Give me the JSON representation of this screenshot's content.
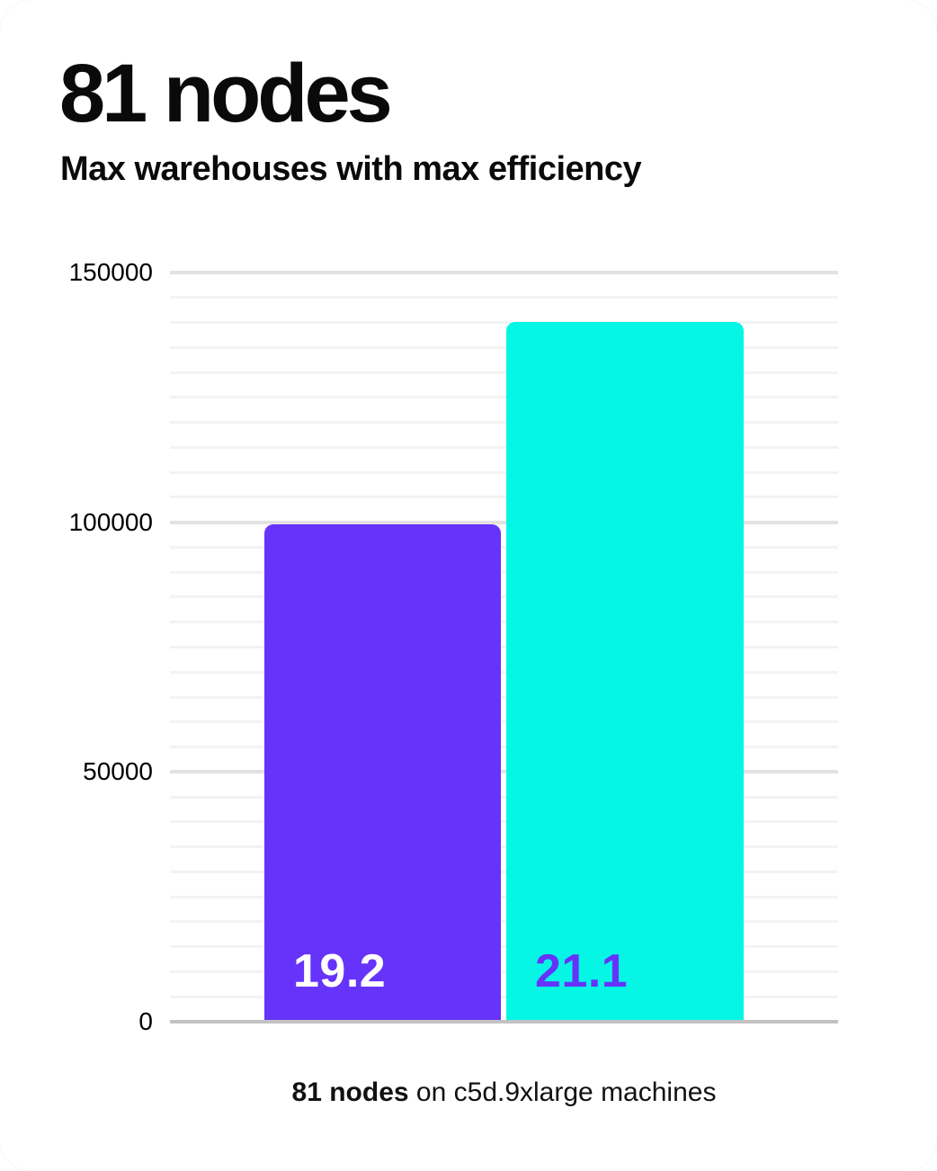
{
  "header": {
    "title": "81 nodes",
    "subtitle": "Max warehouses with max efficiency"
  },
  "caption": {
    "bold": "81 nodes",
    "rest": " on c5d.9xlarge machines"
  },
  "colors": {
    "purple": "#6633fa",
    "cyan": "#06f6e6",
    "text_black": "#0a0a0a",
    "grid_minor": "#f3f3f3",
    "grid_major": "#e2e2e2",
    "axis_baseline": "#c2c2c2",
    "card_background": "#ffffff"
  },
  "chart_data": {
    "type": "bar",
    "title": "81 nodes",
    "subtitle": "Max warehouses with max efficiency",
    "caption": "81 nodes on c5d.9xlarge machines",
    "categories": [
      "19.2",
      "21.1"
    ],
    "series": [
      {
        "name": "Max warehouses",
        "values": [
          99600,
          140100
        ]
      }
    ],
    "bar_labels": [
      "19.2",
      "21.1"
    ],
    "bar_colors": [
      "#6633fa",
      "#06f6e6"
    ],
    "bar_label_colors": [
      "#ffffff",
      "#6633fa"
    ],
    "ylim": [
      0,
      150000
    ],
    "yticks": [
      0,
      50000,
      100000,
      150000
    ],
    "ytick_labels": [
      "0",
      "50000",
      "100000",
      "150000"
    ],
    "minor_tick_interval": 5000,
    "major_tick_interval": 50000,
    "grid": true,
    "legend": false,
    "xlabel": "",
    "ylabel": ""
  }
}
